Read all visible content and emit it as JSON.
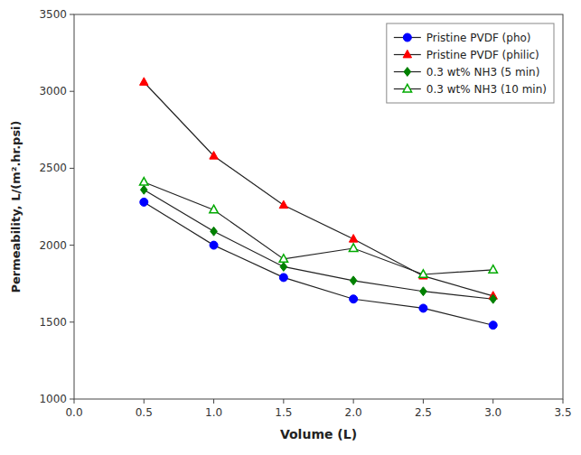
{
  "chart_data": {
    "type": "line",
    "xlabel": "Volume (L)",
    "ylabel": "Permeability, L/(m².hr.psi)",
    "x": [
      0.5,
      1.0,
      1.5,
      2.0,
      2.5,
      3.0
    ],
    "series": [
      {
        "name": "Pristine PVDF (pho)",
        "color": "#0000ff",
        "marker": "circle",
        "values": [
          2280,
          2000,
          1790,
          1650,
          1590,
          1480
        ]
      },
      {
        "name": "Pristine PVDF (philic)",
        "color": "#ff0000",
        "marker": "triangle",
        "values": [
          3060,
          2580,
          2260,
          2040,
          1800,
          1670
        ]
      },
      {
        "name": "0.3 wt% NH3 (5 min)",
        "color": "#008000",
        "marker": "diamond",
        "values": [
          2360,
          2090,
          1860,
          1770,
          1700,
          1650
        ]
      },
      {
        "name": "0.3 wt% NH3 (10 min)",
        "color": "#00aa00",
        "marker": "open-triangle",
        "values": [
          2410,
          2230,
          1910,
          1980,
          1810,
          1840
        ]
      }
    ],
    "xlim": [
      0.0,
      3.5
    ],
    "ylim": [
      1000,
      3500
    ],
    "xticks": [
      {
        "value": 0,
        "label": "0.0"
      },
      0.5,
      {
        "value": 1,
        "label": "1.0"
      },
      1.5,
      {
        "value": 2,
        "label": "2.0"
      },
      2.5,
      {
        "value": 3,
        "label": "3.0"
      },
      3.5
    ],
    "yticks": [
      1000,
      1500,
      2000,
      2500,
      3000,
      3500
    ],
    "legend": "upper right",
    "grid": false
  }
}
